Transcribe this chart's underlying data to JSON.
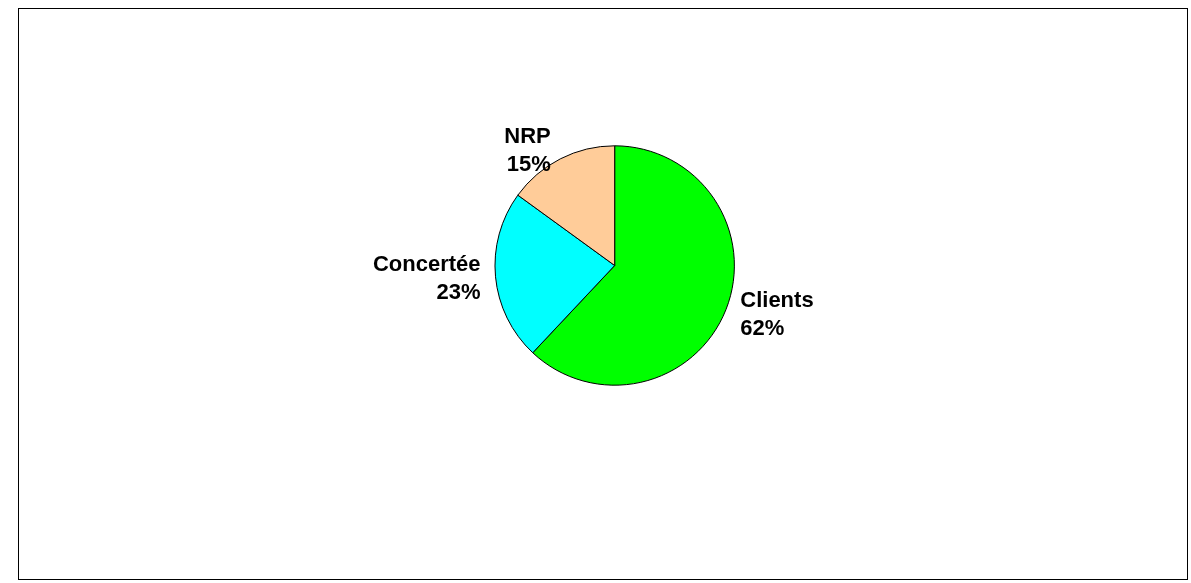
{
  "chart_data": {
    "type": "pie",
    "categories": [
      "Clients",
      "Concertée",
      "NRP"
    ],
    "values": [
      62,
      23,
      15
    ],
    "colors": [
      "#00ff00",
      "#00ffff",
      "#ffcc99"
    ],
    "value_labels": [
      "62%",
      "23%",
      "15%"
    ],
    "legend": false
  }
}
